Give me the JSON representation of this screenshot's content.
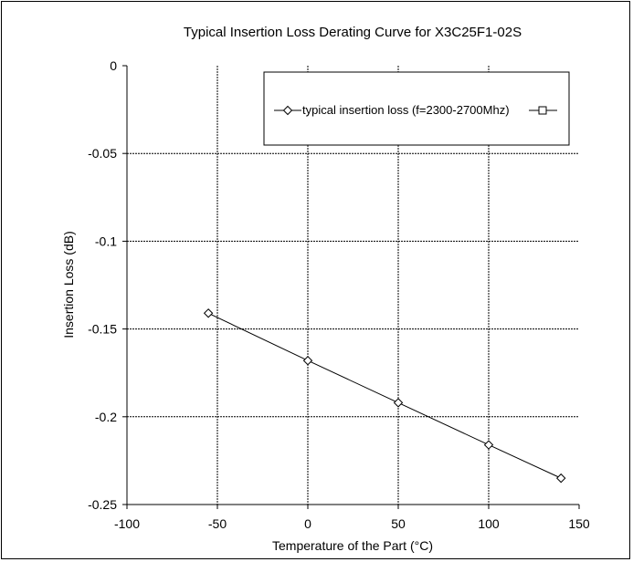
{
  "chart_data": {
    "type": "line",
    "title": "Typical Insertion Loss Derating Curve for X3C25F1-02S",
    "xlabel": "Temperature of the Part (°C)",
    "ylabel": "Insertion Loss (dB)",
    "xlim": [
      -100,
      150
    ],
    "ylim": [
      -0.25,
      0
    ],
    "x_ticks": [
      -100,
      -50,
      0,
      50,
      100,
      150
    ],
    "y_ticks": [
      0,
      -0.05,
      -0.1,
      -0.15,
      -0.2,
      -0.25
    ],
    "x_tick_labels": [
      "-100",
      "-50",
      "0",
      "50",
      "100",
      "150"
    ],
    "y_tick_labels": [
      "0",
      "-0.05",
      "-0.1",
      "-0.15",
      "-0.2",
      "-0.25"
    ],
    "grid": true,
    "legend_position": "top-right",
    "series": [
      {
        "name": "typical insertion loss (f=2300-2700Mhz)",
        "marker": "diamond",
        "color": "#000000",
        "x": [
          -55,
          0,
          50,
          100,
          140
        ],
        "y": [
          -0.141,
          -0.168,
          -0.192,
          -0.216,
          -0.235
        ]
      },
      {
        "name": "",
        "marker": "square",
        "color": "#000000",
        "x": [],
        "y": []
      }
    ]
  }
}
